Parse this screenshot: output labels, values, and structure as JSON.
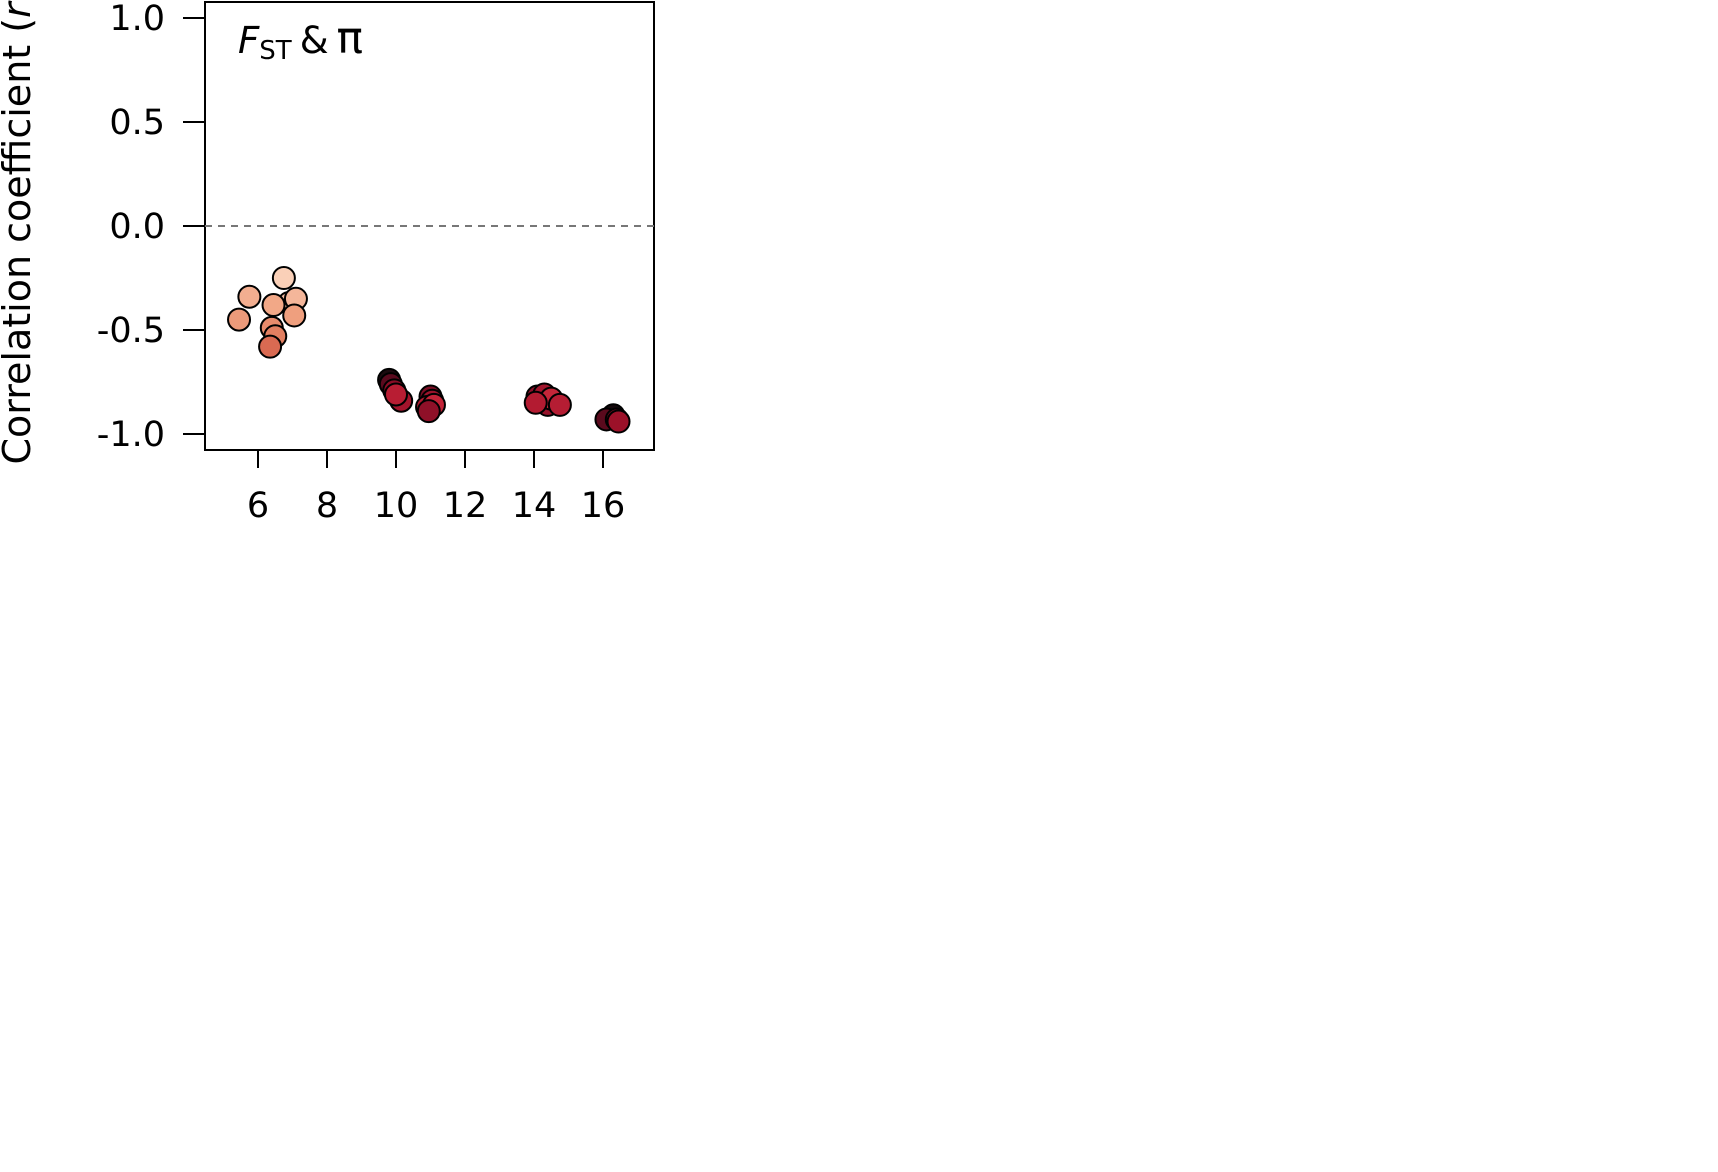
{
  "chart_data": {
    "type": "scatter",
    "ylabel_main": "Correlation coefficient (",
    "ylabel_var": "r",
    "ylabel_close": ")",
    "panel_title": {
      "f": "F",
      "sub": "ST",
      "amp": "&",
      "pi": "π"
    },
    "x_ticks": [
      "6",
      "8",
      "10",
      "12",
      "14",
      "16"
    ],
    "x_tick_values": [
      6,
      8,
      10,
      12,
      14,
      16
    ],
    "y_ticks": [
      "1.0",
      "0.5",
      "0.0",
      "-0.5",
      "-1.0"
    ],
    "y_tick_values": [
      1.0,
      0.5,
      0.0,
      -0.5,
      -1.0
    ],
    "xlim": [
      4.4,
      17.4
    ],
    "ylim": [
      -1.08,
      1.07
    ],
    "reference_line_y": 0.0,
    "grid": false,
    "points": [
      {
        "x": 5.45,
        "y": -0.45,
        "color": "#ec9a7a"
      },
      {
        "x": 5.75,
        "y": -0.34,
        "color": "#f2ae90"
      },
      {
        "x": 6.75,
        "y": -0.25,
        "color": "#fad0b8"
      },
      {
        "x": 6.9,
        "y": -0.37,
        "color": "#f5bca2"
      },
      {
        "x": 7.1,
        "y": -0.35,
        "color": "#f4b69a"
      },
      {
        "x": 6.45,
        "y": -0.38,
        "color": "#f2a887"
      },
      {
        "x": 7.05,
        "y": -0.43,
        "color": "#ef9f7e"
      },
      {
        "x": 6.4,
        "y": -0.49,
        "color": "#e88b6c"
      },
      {
        "x": 6.5,
        "y": -0.53,
        "color": "#e27f61"
      },
      {
        "x": 6.35,
        "y": -0.58,
        "color": "#d96a52"
      },
      {
        "x": 9.8,
        "y": -0.74,
        "color": "#1a0a0e"
      },
      {
        "x": 9.85,
        "y": -0.76,
        "color": "#5a0a1e"
      },
      {
        "x": 9.95,
        "y": -0.79,
        "color": "#8a0d26"
      },
      {
        "x": 10.15,
        "y": -0.84,
        "color": "#a3142c"
      },
      {
        "x": 10.0,
        "y": -0.81,
        "color": "#b81d33"
      },
      {
        "x": 11.0,
        "y": -0.82,
        "color": "#7a0d24"
      },
      {
        "x": 11.05,
        "y": -0.84,
        "color": "#9b132b"
      },
      {
        "x": 10.9,
        "y": -0.87,
        "color": "#b01a30"
      },
      {
        "x": 11.1,
        "y": -0.86,
        "color": "#c22337"
      },
      {
        "x": 10.95,
        "y": -0.89,
        "color": "#8f1028"
      },
      {
        "x": 14.1,
        "y": -0.82,
        "color": "#8a0f27"
      },
      {
        "x": 14.3,
        "y": -0.81,
        "color": "#a1162d"
      },
      {
        "x": 14.4,
        "y": -0.86,
        "color": "#96122a"
      },
      {
        "x": 14.5,
        "y": -0.83,
        "color": "#c52639"
      },
      {
        "x": 14.05,
        "y": -0.85,
        "color": "#b31b31"
      },
      {
        "x": 14.75,
        "y": -0.86,
        "color": "#b51d33"
      },
      {
        "x": 16.3,
        "y": -0.91,
        "color": "#14090c"
      },
      {
        "x": 16.1,
        "y": -0.93,
        "color": "#5a0a1d"
      },
      {
        "x": 16.4,
        "y": -0.93,
        "color": "#7a0c22"
      },
      {
        "x": 16.45,
        "y": -0.94,
        "color": "#9c1129"
      }
    ]
  }
}
